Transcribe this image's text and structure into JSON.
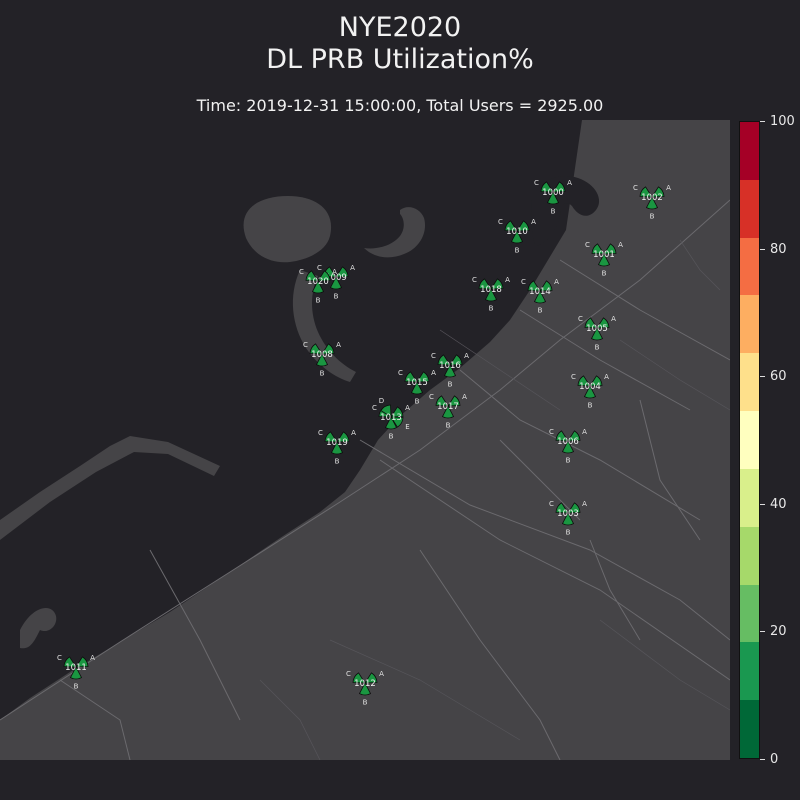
{
  "title": {
    "line1": "NYE2020",
    "line2": "DL PRB Utilization%"
  },
  "subtitle": "Time: 2019-12-31 15:00:00, Total Users = 2925.00",
  "colors": {
    "background": "#232227",
    "land": "#454447",
    "water": "#232227",
    "road": "#6b6a6e",
    "sector_fill": "#1a9641",
    "sector_stroke": "#0d0d0d"
  },
  "colorbar": {
    "min": 0,
    "max": 100,
    "tick_labels": [
      "0",
      "20",
      "40",
      "60",
      "80",
      "100"
    ],
    "tick_values": [
      0,
      20,
      40,
      60,
      80,
      100
    ],
    "bands": [
      {
        "from": 0,
        "to": 10,
        "color": "#006837"
      },
      {
        "from": 10,
        "to": 20,
        "color": "#1a9850"
      },
      {
        "from": 20,
        "to": 30,
        "color": "#66bd63"
      },
      {
        "from": 30,
        "to": 40,
        "color": "#a6d96a"
      },
      {
        "from": 40,
        "to": 50,
        "color": "#d9ef8b"
      },
      {
        "from": 50,
        "to": 60,
        "color": "#ffffbf"
      },
      {
        "from": 60,
        "to": 70,
        "color": "#fee08b"
      },
      {
        "from": 70,
        "to": 80,
        "color": "#fdae61"
      },
      {
        "from": 80,
        "to": 90,
        "color": "#f46d43"
      },
      {
        "from": 90,
        "to": 100,
        "color": "#d73027"
      },
      {
        "from": 100,
        "to": 110,
        "color": "#a50026"
      }
    ]
  },
  "sites": [
    {
      "id": "1000",
      "sectors": [
        "A",
        "B",
        "C"
      ]
    },
    {
      "id": "1001",
      "sectors": [
        "A",
        "B",
        "C"
      ]
    },
    {
      "id": "1002",
      "sectors": [
        "A",
        "B",
        "C"
      ]
    },
    {
      "id": "1003",
      "sectors": [
        "A",
        "B",
        "C"
      ]
    },
    {
      "id": "1004",
      "sectors": [
        "A",
        "B",
        "C"
      ]
    },
    {
      "id": "1005",
      "sectors": [
        "A",
        "B",
        "C"
      ]
    },
    {
      "id": "1006",
      "sectors": [
        "A",
        "B",
        "C"
      ]
    },
    {
      "id": "1008",
      "sectors": [
        "A",
        "B",
        "C"
      ]
    },
    {
      "id": "1009",
      "sectors": [
        "A",
        "B",
        "C"
      ]
    },
    {
      "id": "1010",
      "sectors": [
        "A",
        "B",
        "C"
      ]
    },
    {
      "id": "1011",
      "sectors": [
        "A",
        "B",
        "C"
      ]
    },
    {
      "id": "1012",
      "sectors": [
        "A",
        "B",
        "C"
      ]
    },
    {
      "id": "1013",
      "sectors": [
        "A",
        "B",
        "C",
        "D",
        "E"
      ]
    },
    {
      "id": "1014",
      "sectors": [
        "A",
        "B",
        "C"
      ]
    },
    {
      "id": "1015",
      "sectors": [
        "A",
        "B",
        "C"
      ]
    },
    {
      "id": "1016",
      "sectors": [
        "A",
        "B",
        "C"
      ]
    },
    {
      "id": "1017",
      "sectors": [
        "A",
        "B",
        "C"
      ]
    },
    {
      "id": "1018",
      "sectors": [
        "A",
        "B",
        "C"
      ]
    },
    {
      "id": "1019",
      "sectors": [
        "A",
        "B",
        "C"
      ]
    },
    {
      "id": "1020",
      "sectors": [
        "A",
        "B",
        "C"
      ]
    }
  ]
}
